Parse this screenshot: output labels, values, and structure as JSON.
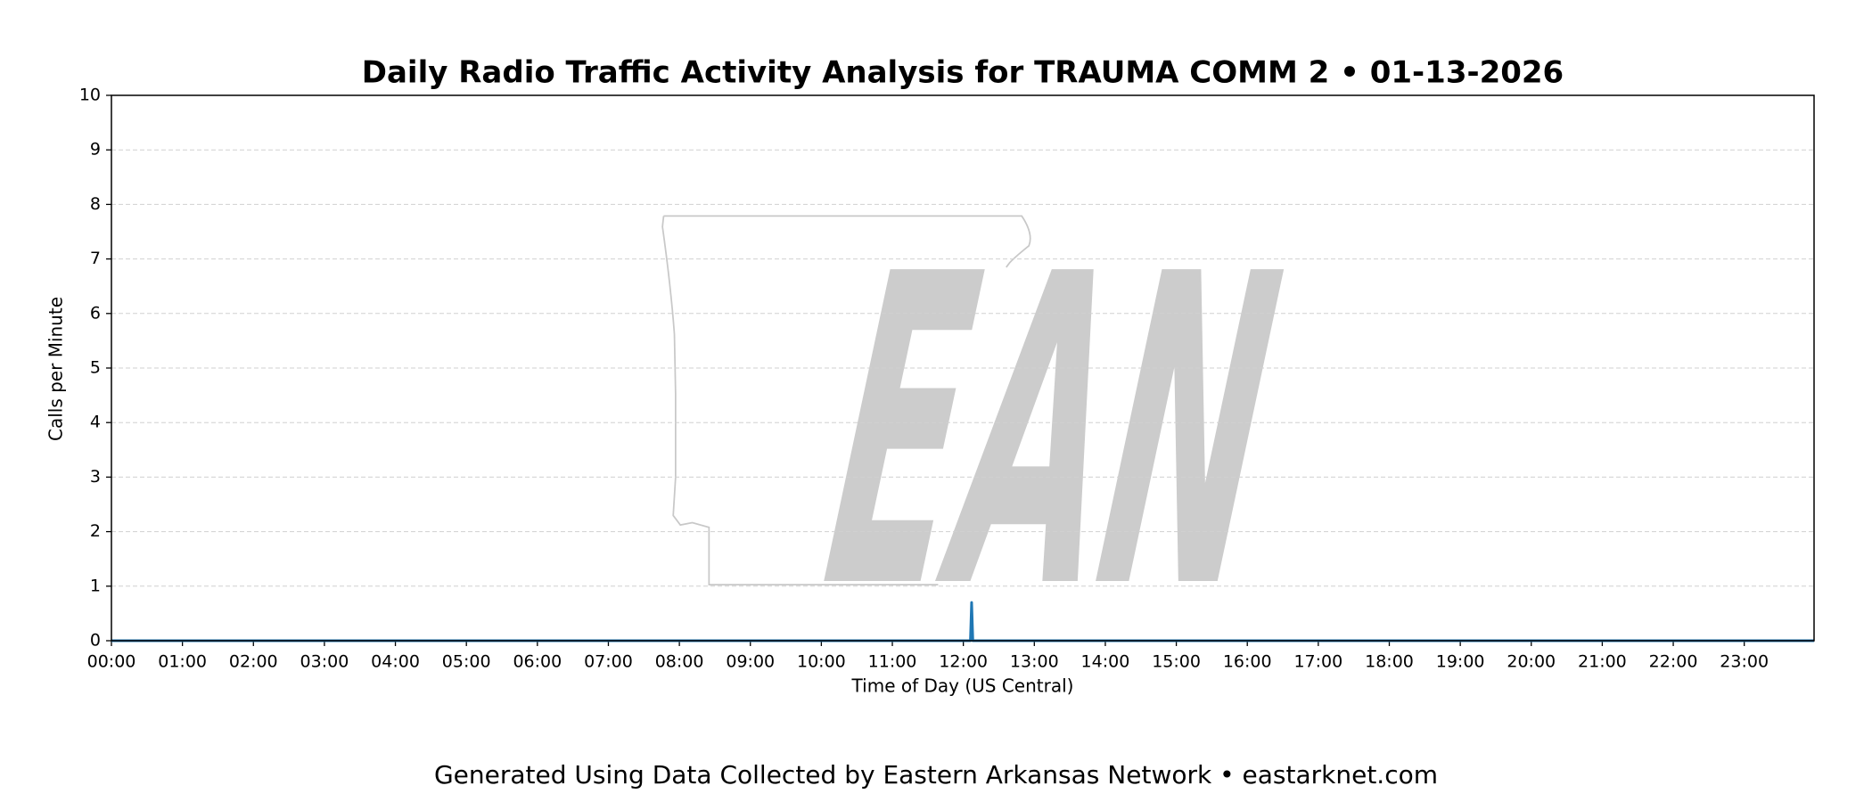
{
  "chart_data": {
    "type": "line",
    "title": "Daily Radio Traffic Activity Analysis for TRAUMA COMM 2 • 01-13-2026",
    "x_label": "Time of Day (US Central)",
    "y_label": "Calls per Minute",
    "footer": "Generated Using Data Collected by Eastern Arkansas Network • eastarknet.com",
    "watermark": "EAN",
    "x": [
      0,
      725,
      726,
      727,
      728,
      1439
    ],
    "series": [
      {
        "color": "#1f77b4",
        "values": [
          0,
          0,
          0,
          0.7,
          0,
          0
        ]
      }
    ],
    "xlim": [
      0,
      1439
    ],
    "xticks": [
      {
        "value": 0,
        "label": "00:00"
      },
      {
        "value": 60,
        "label": "01:00"
      },
      {
        "value": 120,
        "label": "02:00"
      },
      {
        "value": 180,
        "label": "03:00"
      },
      {
        "value": 240,
        "label": "04:00"
      },
      {
        "value": 300,
        "label": "05:00"
      },
      {
        "value": 360,
        "label": "06:00"
      },
      {
        "value": 420,
        "label": "07:00"
      },
      {
        "value": 480,
        "label": "08:00"
      },
      {
        "value": 540,
        "label": "09:00"
      },
      {
        "value": 600,
        "label": "10:00"
      },
      {
        "value": 660,
        "label": "11:00"
      },
      {
        "value": 720,
        "label": "12:00"
      },
      {
        "value": 780,
        "label": "13:00"
      },
      {
        "value": 840,
        "label": "14:00"
      },
      {
        "value": 900,
        "label": "15:00"
      },
      {
        "value": 960,
        "label": "16:00"
      },
      {
        "value": 1020,
        "label": "17:00"
      },
      {
        "value": 1080,
        "label": "18:00"
      },
      {
        "value": 1140,
        "label": "19:00"
      },
      {
        "value": 1200,
        "label": "20:00"
      },
      {
        "value": 1260,
        "label": "21:00"
      },
      {
        "value": 1320,
        "label": "22:00"
      },
      {
        "value": 1380,
        "label": "23:00"
      }
    ],
    "ylim": [
      0,
      10
    ],
    "yticks": [
      0,
      1,
      2,
      3,
      4,
      5,
      6,
      7,
      8,
      9,
      10
    ],
    "grid": true
  }
}
